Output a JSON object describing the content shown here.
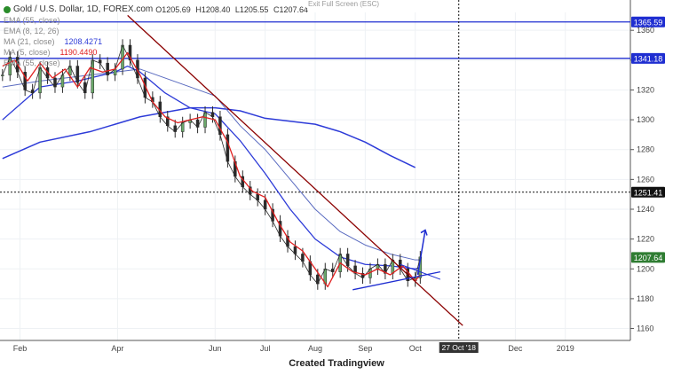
{
  "chart_data": {
    "type": "candlestick",
    "title": "Gold / U.S. Dollar, 1D, FOREX.com",
    "ohlc": {
      "open": "O1205.69",
      "high": "H1208.40",
      "low": "L1205.55",
      "close": "C1207.64"
    },
    "indicators": [
      {
        "label": "EMA (55, close)",
        "value": "",
        "color": "#2d3bd8"
      },
      {
        "label": "EMA (8, 12, 26)",
        "value": "",
        "color": "#2d3bd8"
      },
      {
        "label": "MA (21, close)",
        "value": "1208.4271",
        "color": "#2d3bd8"
      },
      {
        "label": "MA (5, close)",
        "value": "1190.4490",
        "color": "#e02020"
      },
      {
        "label": "EMA (55, close)",
        "value": "",
        "color": "#2d3bd8"
      }
    ],
    "y_ticks": [
      1160,
      1180,
      1200,
      1220,
      1240,
      1260,
      1280,
      1300,
      1320,
      1340,
      1360
    ],
    "ylim": [
      1152,
      1372
    ],
    "x_labels": [
      "Feb",
      "Apr",
      "Jun",
      "Jul",
      "Aug",
      "Sep",
      "Oct",
      "Dec",
      "2019"
    ],
    "x_months": [
      1.1,
      3.05,
      5.0,
      6.0,
      7.0,
      8.0,
      9.0,
      11.0,
      12.0
    ],
    "xlim": [
      0.7,
      13.3
    ],
    "crosshair_date": "27 Oct '18",
    "crosshair_x": 9.87,
    "horizontal_lines": [
      {
        "label": "1365.59",
        "value": 1365.59,
        "color": "#1f2ed1"
      },
      {
        "label": "1341.18",
        "value": 1341.18,
        "color": "#1f2ed1"
      },
      {
        "label": "1251.41",
        "value": 1251.41,
        "color": "#111111"
      }
    ],
    "last_price": {
      "label": "1207.64",
      "value": 1207.64
    },
    "trendline_down": {
      "x": [
        3.25,
        9.95
      ],
      "y": [
        1370,
        1162
      ],
      "color": "#8b0000"
    },
    "triangle_upper": {
      "x": [
        7.75,
        9.5
      ],
      "y": [
        1186,
        1198
      ],
      "color": "#1f2ed1"
    },
    "triangle_lower": {
      "x": [
        8.7,
        9.5
      ],
      "y": [
        1203,
        1193
      ],
      "color": "#1f2ed1"
    },
    "arrow": {
      "x": [
        9.05,
        9.2
      ],
      "y": [
        1196,
        1226
      ],
      "color": "#1f2ed1"
    },
    "price": {
      "x": [
        0.75,
        0.9,
        1.05,
        1.2,
        1.35,
        1.5,
        1.65,
        1.8,
        1.95,
        2.1,
        2.25,
        2.4,
        2.55,
        2.7,
        2.85,
        3.0,
        3.15,
        3.3,
        3.45,
        3.6,
        3.75,
        3.9,
        4.05,
        4.2,
        4.35,
        4.5,
        4.65,
        4.8,
        4.95,
        5.1,
        5.25,
        5.4,
        5.55,
        5.7,
        5.85,
        6.0,
        6.15,
        6.3,
        6.45,
        6.6,
        6.75,
        6.9,
        7.05,
        7.2,
        7.35,
        7.5,
        7.65,
        7.8,
        7.95,
        8.1,
        8.25,
        8.4,
        8.55,
        8.7,
        8.85,
        9.0,
        9.1
      ],
      "values": [
        1330,
        1342,
        1332,
        1320,
        1318,
        1335,
        1328,
        1322,
        1330,
        1336,
        1325,
        1318,
        1340,
        1338,
        1330,
        1334,
        1350,
        1340,
        1328,
        1315,
        1312,
        1302,
        1296,
        1292,
        1298,
        1300,
        1295,
        1305,
        1302,
        1290,
        1272,
        1262,
        1255,
        1250,
        1246,
        1240,
        1232,
        1222,
        1215,
        1210,
        1205,
        1196,
        1190,
        1200,
        1198,
        1210,
        1202,
        1197,
        1194,
        1200,
        1203,
        1197,
        1206,
        1200,
        1192,
        1194,
        1208
      ]
    },
    "ma_red": {
      "x": [
        0.75,
        1.0,
        1.25,
        1.5,
        1.75,
        2.0,
        2.25,
        2.5,
        2.75,
        3.0,
        3.25,
        3.5,
        3.75,
        4.0,
        4.25,
        4.5,
        4.75,
        5.0,
        5.25,
        5.5,
        5.75,
        6.0,
        6.25,
        6.5,
        6.75,
        7.0,
        7.25,
        7.5,
        7.75,
        8.0,
        8.25,
        8.5,
        8.75,
        9.0,
        9.1
      ],
      "values": [
        1336,
        1340,
        1326,
        1338,
        1328,
        1334,
        1322,
        1335,
        1332,
        1334,
        1345,
        1330,
        1312,
        1302,
        1298,
        1300,
        1302,
        1300,
        1285,
        1262,
        1252,
        1248,
        1232,
        1218,
        1212,
        1200,
        1188,
        1204,
        1198,
        1196,
        1200,
        1196,
        1202,
        1192,
        1196
      ]
    },
    "ema_blue": {
      "x": [
        0.75,
        1.5,
        2.25,
        3.0,
        3.25,
        3.5,
        4.0,
        4.5,
        5.0,
        5.5,
        6.0,
        6.5,
        7.0,
        7.5,
        8.0,
        8.5,
        9.0,
        9.1
      ],
      "values": [
        1300,
        1322,
        1326,
        1332,
        1336,
        1332,
        1318,
        1308,
        1304,
        1286,
        1264,
        1240,
        1220,
        1208,
        1203,
        1202,
        1200,
        1201
      ]
    },
    "ema_long": {
      "x": [
        0.75,
        1.5,
        2.5,
        3.5,
        4.5,
        5.0,
        5.5,
        6.0,
        6.5,
        7.0,
        7.5,
        8.0,
        8.5,
        9.0,
        9.1
      ],
      "values": [
        1322,
        1326,
        1330,
        1334,
        1322,
        1316,
        1296,
        1280,
        1260,
        1240,
        1225,
        1216,
        1210,
        1206,
        1206
      ]
    },
    "ema_200": {
      "x": [
        0.75,
        1.5,
        2.5,
        3.5,
        4.5,
        5.0,
        5.5,
        6.0,
        6.5,
        7.0,
        7.5,
        8.0,
        8.5,
        9.0
      ],
      "values": [
        1274,
        1285,
        1292,
        1302,
        1308,
        1308,
        1306,
        1301,
        1299,
        1297,
        1292,
        1285,
        1276,
        1268
      ]
    }
  },
  "ui": {
    "exit_fullscreen": "Exit Full Screen (ESC)",
    "caption": "Created Tradingview",
    "colors": {
      "price": "#2a2a2a",
      "red_ma": "#e02020",
      "blue_ma": "#2d3bd8",
      "blue_long": "#2d3bd8",
      "grid": "#eef1f4"
    }
  }
}
